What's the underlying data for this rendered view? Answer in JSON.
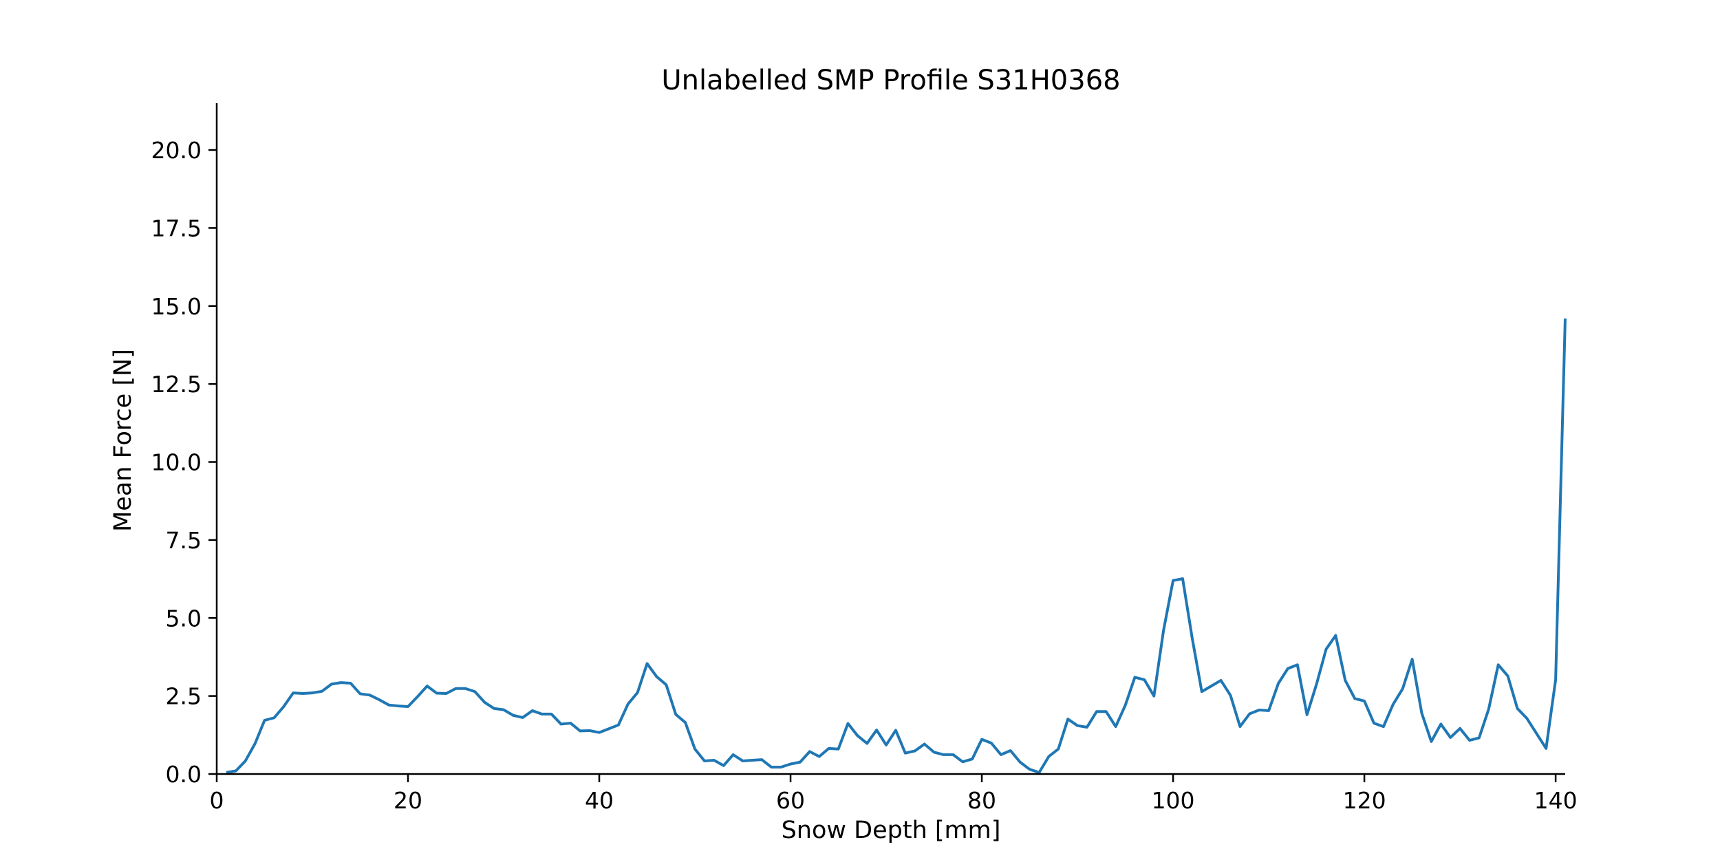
{
  "chart_data": {
    "type": "line",
    "title": "Unlabelled SMP Profile S31H0368",
    "xlabel": "Snow Depth [mm]",
    "ylabel": "Mean Force [N]",
    "xlim": [
      0,
      141
    ],
    "ylim": [
      0,
      21.5
    ],
    "xticks": [
      0,
      20,
      40,
      60,
      80,
      100,
      120,
      140
    ],
    "xtick_labels": [
      "0",
      "20",
      "40",
      "60",
      "80",
      "100",
      "120",
      "140"
    ],
    "yticks": [
      0,
      2.5,
      5,
      7.5,
      10,
      12.5,
      15,
      17.5,
      20
    ],
    "ytick_labels": [
      "0.0",
      "2.5",
      "5.0",
      "7.5",
      "10.0",
      "12.5",
      "15.0",
      "17.5",
      "20.0"
    ],
    "grid": false,
    "line_color": "#1f77b4",
    "series": [
      {
        "x": [
          1,
          2,
          3,
          4,
          5,
          6,
          7,
          8,
          9,
          10,
          11,
          12,
          13,
          14,
          15,
          16,
          17,
          18,
          19,
          20,
          21,
          22,
          23,
          24,
          25,
          26,
          27,
          28,
          29,
          30,
          31,
          32,
          33,
          34,
          35,
          36,
          37,
          38,
          39,
          40,
          41,
          42,
          43,
          44,
          45,
          46,
          47,
          48,
          49,
          50,
          51,
          52,
          53,
          54,
          55,
          56,
          57,
          58,
          59,
          60,
          61,
          62,
          63,
          64,
          65,
          66,
          67,
          68,
          69,
          70,
          71,
          72,
          73,
          74,
          75,
          76,
          77,
          78,
          79,
          80,
          81,
          82,
          83,
          84,
          85,
          86,
          87,
          88,
          89,
          90,
          91,
          92,
          93,
          94,
          95,
          96,
          97,
          98,
          99,
          100,
          101,
          102,
          103,
          104,
          105,
          106,
          107,
          108,
          109,
          110,
          111,
          112,
          113,
          114,
          115,
          116,
          117,
          118,
          119,
          120,
          121,
          122,
          123,
          124,
          125,
          126,
          127,
          128,
          129,
          130,
          131,
          132,
          133,
          134,
          135,
          136,
          137,
          138,
          139,
          140,
          141
        ],
        "y": [
          0.05,
          0.1,
          0.42,
          0.97,
          1.72,
          1.8,
          2.16,
          2.6,
          2.58,
          2.6,
          2.65,
          2.88,
          2.93,
          2.91,
          2.57,
          2.53,
          2.38,
          2.21,
          2.18,
          2.16,
          2.48,
          2.82,
          2.59,
          2.58,
          2.74,
          2.74,
          2.64,
          2.3,
          2.1,
          2.06,
          1.88,
          1.81,
          2.03,
          1.92,
          1.92,
          1.6,
          1.63,
          1.38,
          1.39,
          1.33,
          1.45,
          1.57,
          2.24,
          2.61,
          3.54,
          3.12,
          2.86,
          1.91,
          1.65,
          0.8,
          0.42,
          0.44,
          0.27,
          0.62,
          0.42,
          0.44,
          0.46,
          0.22,
          0.22,
          0.32,
          0.38,
          0.72,
          0.56,
          0.82,
          0.8,
          1.62,
          1.23,
          0.98,
          1.41,
          0.93,
          1.4,
          0.67,
          0.74,
          0.96,
          0.7,
          0.62,
          0.62,
          0.39,
          0.48,
          1.11,
          0.99,
          0.62,
          0.75,
          0.38,
          0.15,
          0.05,
          0.56,
          0.8,
          1.76,
          1.55,
          1.5,
          2.0,
          2.0,
          1.52,
          2.2,
          3.1,
          3.02,
          2.5,
          4.6,
          6.2,
          6.26,
          4.35,
          2.64,
          2.82,
          3.0,
          2.52,
          1.52,
          1.93,
          2.05,
          2.03,
          2.9,
          3.38,
          3.5,
          1.9,
          2.88,
          4.0,
          4.44,
          3.0,
          2.42,
          2.34,
          1.63,
          1.52,
          2.23,
          2.73,
          3.68,
          1.95,
          1.04,
          1.6,
          1.17,
          1.46,
          1.08,
          1.16,
          2.08,
          3.5,
          3.14,
          2.1,
          1.78,
          1.3,
          0.82,
          3.02,
          14.6
        ]
      }
    ]
  }
}
